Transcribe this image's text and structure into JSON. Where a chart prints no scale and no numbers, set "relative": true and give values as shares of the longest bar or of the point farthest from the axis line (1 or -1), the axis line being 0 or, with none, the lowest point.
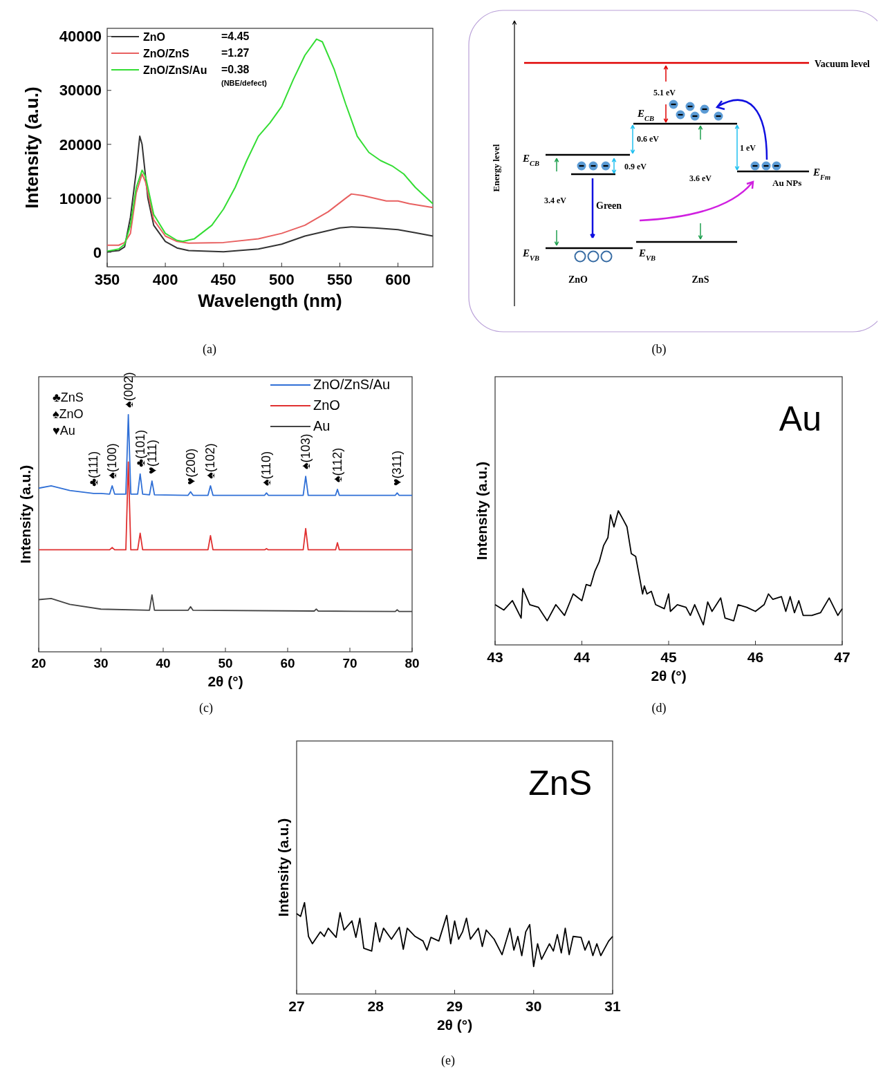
{
  "chart_data": [
    {
      "type": "line",
      "subtitle": "(a)",
      "xlabel": "Wavelength (nm)",
      "ylabel": "Intensity (a.u.)",
      "xlim": [
        350,
        630
      ],
      "xticks": [
        350,
        400,
        450,
        500,
        550,
        600
      ],
      "ylim": [
        -2700,
        41500
      ],
      "yticks": [
        0,
        10000,
        20000,
        30000,
        40000
      ],
      "legend": "top left",
      "annotations": [
        "=4.45",
        "=1.27",
        "=0.38",
        "(NBE/defect)"
      ],
      "series": [
        {
          "name": "ZnO",
          "color": "#333333",
          "x": [
            350,
            360,
            365,
            370,
            375,
            378,
            380,
            385,
            390,
            400,
            410,
            420,
            450,
            480,
            500,
            520,
            550,
            560,
            580,
            600,
            615,
            630
          ],
          "values": [
            100,
            300,
            1000,
            6500,
            15000,
            21500,
            20000,
            10000,
            5000,
            2000,
            800,
            300,
            100,
            600,
            1500,
            3000,
            4500,
            4700,
            4500,
            4200,
            3600,
            3000
          ]
        },
        {
          "name": "ZnO/ZnS",
          "color": "#e86060",
          "x": [
            350,
            360,
            365,
            370,
            375,
            380,
            383,
            390,
            400,
            410,
            420,
            450,
            480,
            500,
            520,
            540,
            555,
            560,
            570,
            590,
            600,
            610,
            630
          ],
          "values": [
            1300,
            1300,
            1800,
            3500,
            11000,
            14500,
            13000,
            6000,
            3000,
            2000,
            1700,
            1800,
            2500,
            3500,
            5000,
            7500,
            10000,
            10800,
            10500,
            9500,
            9500,
            9000,
            8300
          ]
        },
        {
          "name": "ZnO/ZnS/Au",
          "color": "#33dd33",
          "x": [
            350,
            360,
            365,
            370,
            375,
            380,
            383,
            390,
            400,
            410,
            415,
            425,
            440,
            450,
            460,
            470,
            480,
            490,
            500,
            510,
            520,
            530,
            535,
            545,
            555,
            565,
            575,
            585,
            595,
            605,
            615,
            630
          ],
          "values": [
            200,
            600,
            1500,
            5000,
            12000,
            15200,
            14000,
            7000,
            3500,
            2200,
            2000,
            2500,
            5000,
            8000,
            12000,
            17000,
            21500,
            24000,
            27000,
            32000,
            36500,
            39500,
            39000,
            34000,
            27500,
            21500,
            18500,
            17000,
            16000,
            14500,
            12000,
            9000
          ]
        }
      ]
    },
    {
      "type": "other",
      "subtitle": "(b)",
      "annotations": [
        "Vacuum level",
        "5.1 eV",
        "E$_{CB}$",
        "E$_{CB}$",
        "0.6 eV",
        "0.9 eV",
        "1 eV",
        "3.6 eV",
        "3.4 eV",
        "Green",
        "E$_{VB}$",
        "E$_{VB}$",
        "E$_{Fm}$",
        "Au NPs",
        "ZnO",
        "ZnS",
        "Energy level"
      ]
    },
    {
      "type": "line",
      "subtitle": "(c)",
      "relative": true,
      "tick_labels": "x",
      "xlabel": "2θ (°)",
      "ylabel": "Intensity (a.u.)",
      "xlim": [
        20,
        80
      ],
      "xticks": [
        20,
        30,
        40,
        50,
        60,
        70,
        80
      ],
      "legend": "top right",
      "annotations": [
        "♣ZnS",
        "♠ZnO",
        "♥Au",
        {
          "text": "♣(111)",
          "x": 28.8,
          "y": 0.668
        },
        {
          "text": "♠(100)",
          "x": 31.8,
          "y": 0.7
        },
        {
          "text": "♠(002)",
          "x": 34.4,
          "y": 1.0
        },
        {
          "text": "♣(101)",
          "x": 36.3,
          "y": 0.75
        },
        {
          "text": "♥(111)",
          "x": 38.2,
          "y": 0.72
        },
        {
          "text": "♥(200)",
          "x": 44.4,
          "y": 0.675
        },
        {
          "text": "♠(102)",
          "x": 47.6,
          "y": 0.7
        },
        {
          "text": "♠(110)",
          "x": 56.6,
          "y": 0.67
        },
        {
          "text": "♠(103)",
          "x": 62.9,
          "y": 0.74
        },
        {
          "text": "♠(112)",
          "x": 68.0,
          "y": 0.685
        },
        {
          "text": "♥(311)",
          "x": 77.6,
          "y": 0.67
        }
      ],
      "series": [
        {
          "name": "ZnO/ZnS/Au",
          "color": "#2f6fd6",
          "x": [
            20,
            22,
            25,
            28.8,
            30,
            31.4,
            31.8,
            32.2,
            34.0,
            34.4,
            34.8,
            35.9,
            36.3,
            36.7,
            37.8,
            38.2,
            38.6,
            44.0,
            44.4,
            44.8,
            47.2,
            47.6,
            48.0,
            56.3,
            56.6,
            56.9,
            62.5,
            62.9,
            63.3,
            67.7,
            68.0,
            68.3,
            77.3,
            77.6,
            77.9,
            80
          ],
          "values": [
            0.69,
            0.7,
            0.68,
            0.668,
            0.668,
            0.665,
            0.7,
            0.665,
            0.665,
            1.0,
            0.665,
            0.665,
            0.75,
            0.665,
            0.662,
            0.72,
            0.662,
            0.66,
            0.675,
            0.66,
            0.66,
            0.7,
            0.66,
            0.66,
            0.67,
            0.66,
            0.66,
            0.74,
            0.66,
            0.66,
            0.685,
            0.66,
            0.66,
            0.67,
            0.66,
            0.66
          ]
        },
        {
          "name": "ZnO",
          "color": "#e03030",
          "x": [
            20,
            31.4,
            31.8,
            32.2,
            34.0,
            34.4,
            34.8,
            35.9,
            36.3,
            36.7,
            47.2,
            47.6,
            48.0,
            56.3,
            56.6,
            56.9,
            62.5,
            62.9,
            63.3,
            67.7,
            68.0,
            68.3,
            80
          ],
          "values": [
            0.43,
            0.43,
            0.44,
            0.43,
            0.43,
            0.8,
            0.43,
            0.43,
            0.5,
            0.43,
            0.43,
            0.49,
            0.43,
            0.43,
            0.435,
            0.43,
            0.43,
            0.52,
            0.43,
            0.43,
            0.46,
            0.43,
            0.43
          ]
        },
        {
          "name": "Au",
          "color": "#444444",
          "x": [
            20,
            22,
            25,
            30,
            37.8,
            38.2,
            38.6,
            44.0,
            44.4,
            44.8,
            64.3,
            64.6,
            64.9,
            77.3,
            77.6,
            77.9,
            80
          ],
          "values": [
            0.22,
            0.225,
            0.2,
            0.18,
            0.175,
            0.24,
            0.175,
            0.175,
            0.19,
            0.175,
            0.172,
            0.18,
            0.172,
            0.17,
            0.177,
            0.17,
            0.17
          ]
        }
      ]
    },
    {
      "type": "line",
      "subtitle": "(d)",
      "relative": true,
      "tick_labels": "x",
      "xlabel": "2θ (°)",
      "ylabel": "Intensity (a.u.)",
      "xlim": [
        43,
        47
      ],
      "xticks": [
        43,
        44,
        45,
        46,
        47
      ],
      "annotations": [
        "Au"
      ],
      "series": [
        {
          "color": "#000000",
          "x": [
            43.0,
            43.1,
            43.2,
            43.3,
            43.32,
            43.4,
            43.5,
            43.6,
            43.7,
            43.8,
            43.9,
            44.0,
            44.05,
            44.1,
            44.15,
            44.2,
            44.25,
            44.3,
            44.33,
            44.37,
            44.42,
            44.48,
            44.52,
            44.57,
            44.62,
            44.66,
            44.7,
            44.72,
            44.75,
            44.8,
            44.85,
            44.95,
            45.0,
            45.02,
            45.1,
            45.2,
            45.25,
            45.3,
            45.4,
            45.45,
            45.5,
            45.6,
            45.65,
            45.75,
            45.8,
            45.9,
            46.0,
            46.1,
            46.15,
            46.2,
            46.3,
            46.35,
            46.4,
            46.45,
            46.5,
            46.55,
            46.65,
            46.75,
            46.85,
            46.95,
            47.0
          ],
          "values": [
            0.3,
            0.26,
            0.33,
            0.2,
            0.42,
            0.3,
            0.28,
            0.18,
            0.3,
            0.22,
            0.38,
            0.33,
            0.45,
            0.44,
            0.55,
            0.62,
            0.74,
            0.8,
            0.97,
            0.88,
            1.0,
            0.93,
            0.88,
            0.68,
            0.66,
            0.52,
            0.38,
            0.44,
            0.38,
            0.4,
            0.3,
            0.27,
            0.38,
            0.25,
            0.3,
            0.28,
            0.22,
            0.3,
            0.15,
            0.32,
            0.25,
            0.35,
            0.2,
            0.18,
            0.3,
            0.28,
            0.25,
            0.3,
            0.38,
            0.34,
            0.36,
            0.25,
            0.36,
            0.24,
            0.33,
            0.22,
            0.22,
            0.24,
            0.35,
            0.22,
            0.27
          ]
        }
      ]
    },
    {
      "type": "line",
      "subtitle": "(e)",
      "relative": true,
      "tick_labels": "x",
      "xlabel": "2θ (°)",
      "ylabel": "Intensity (a.u.)",
      "xlim": [
        27,
        31
      ],
      "xticks": [
        27,
        28,
        29,
        30,
        31
      ],
      "annotations": [
        "ZnS"
      ],
      "series": [
        {
          "color": "#000000",
          "x": [
            27.0,
            27.05,
            27.1,
            27.15,
            27.2,
            27.3,
            27.35,
            27.4,
            27.5,
            27.55,
            27.6,
            27.7,
            27.75,
            27.8,
            27.85,
            27.95,
            28.0,
            28.05,
            28.1,
            28.2,
            28.3,
            28.35,
            28.4,
            28.5,
            28.6,
            28.65,
            28.7,
            28.8,
            28.9,
            28.95,
            29.0,
            29.05,
            29.1,
            29.15,
            29.2,
            29.3,
            29.35,
            29.4,
            29.5,
            29.6,
            29.7,
            29.75,
            29.8,
            29.85,
            29.9,
            29.95,
            30.0,
            30.05,
            30.1,
            30.2,
            30.25,
            30.3,
            30.35,
            30.4,
            30.45,
            30.5,
            30.6,
            30.65,
            30.7,
            30.75,
            30.8,
            30.85,
            30.9,
            30.95,
            31.0
          ],
          "values": [
            0.88,
            0.85,
            1.0,
            0.63,
            0.55,
            0.68,
            0.63,
            0.72,
            0.62,
            0.89,
            0.7,
            0.8,
            0.62,
            0.83,
            0.5,
            0.47,
            0.78,
            0.57,
            0.72,
            0.6,
            0.73,
            0.49,
            0.72,
            0.63,
            0.58,
            0.48,
            0.62,
            0.58,
            0.86,
            0.55,
            0.8,
            0.6,
            0.68,
            0.83,
            0.6,
            0.72,
            0.52,
            0.7,
            0.6,
            0.43,
            0.72,
            0.48,
            0.63,
            0.42,
            0.68,
            0.76,
            0.3,
            0.55,
            0.38,
            0.55,
            0.47,
            0.65,
            0.45,
            0.72,
            0.43,
            0.63,
            0.62,
            0.48,
            0.58,
            0.42,
            0.55,
            0.42,
            0.5,
            0.58,
            0.63
          ]
        }
      ]
    }
  ]
}
